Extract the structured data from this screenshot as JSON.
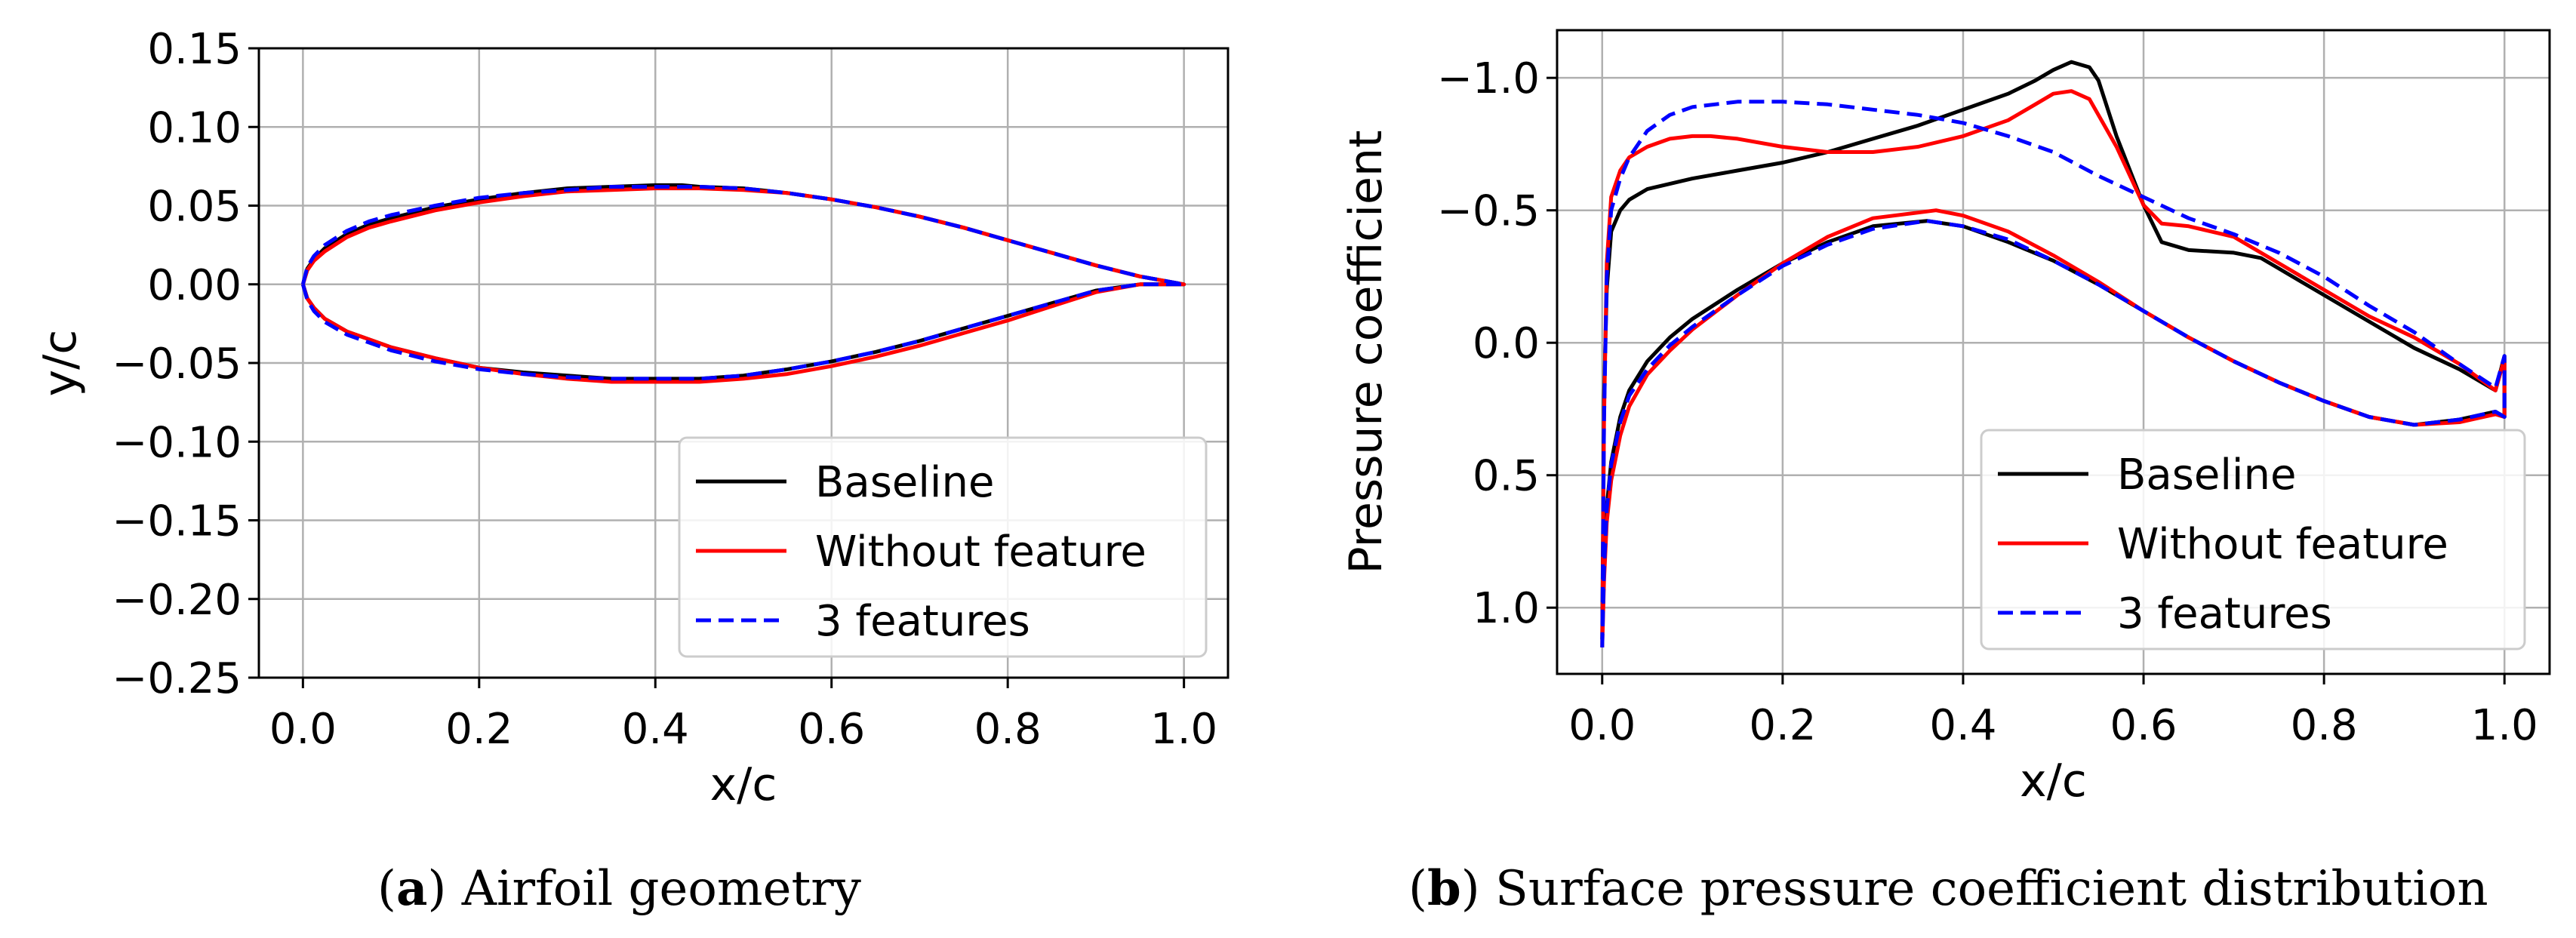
{
  "chart_data": [
    {
      "type": "line",
      "id": "a",
      "title": "",
      "caption_letter": "a",
      "caption_text": ") Airfoil geometry",
      "xlabel": "x/c",
      "ylabel": "y/c",
      "xlim": [
        -0.05,
        1.05
      ],
      "ylim": [
        -0.25,
        0.15
      ],
      "inverted_y": false,
      "grid": true,
      "xticks": [
        0.0,
        0.2,
        0.4,
        0.6,
        0.8,
        1.0
      ],
      "xtick_labels": [
        "0.0",
        "0.2",
        "0.4",
        "0.6",
        "0.8",
        "1.0"
      ],
      "yticks": [
        0.15,
        0.1,
        0.05,
        0.0,
        -0.05,
        -0.1,
        -0.15,
        -0.2,
        -0.25
      ],
      "ytick_labels": [
        "0.15",
        "0.10",
        "0.05",
        "0.00",
        "−0.05",
        "−0.10",
        "−0.15",
        "−0.20",
        "−0.25"
      ],
      "legend": {
        "placement": "lower-right",
        "entries": [
          "Baseline",
          "Without feature",
          "3 features"
        ]
      },
      "series": [
        {
          "name": "Baseline",
          "color": "#000000",
          "dash": "solid",
          "x": [
            0,
            0.005,
            0.0125,
            0.025,
            0.05,
            0.075,
            0.1,
            0.15,
            0.2,
            0.25,
            0.3,
            0.35,
            0.4,
            0.43,
            0.45,
            0.5,
            0.55,
            0.6,
            0.65,
            0.7,
            0.75,
            0.8,
            0.85,
            0.9,
            0.95,
            1.0,
            0.95,
            0.9,
            0.85,
            0.8,
            0.75,
            0.7,
            0.65,
            0.6,
            0.55,
            0.5,
            0.45,
            0.4,
            0.35,
            0.3,
            0.25,
            0.2,
            0.15,
            0.1,
            0.075,
            0.05,
            0.025,
            0.0125,
            0.005,
            0
          ],
          "y": [
            0,
            0.01,
            0.016,
            0.023,
            0.032,
            0.038,
            0.042,
            0.049,
            0.054,
            0.058,
            0.061,
            0.062,
            0.063,
            0.063,
            0.062,
            0.061,
            0.058,
            0.054,
            0.049,
            0.043,
            0.036,
            0.028,
            0.02,
            0.012,
            0.005,
            0.0,
            0.0,
            -0.004,
            -0.012,
            -0.02,
            -0.028,
            -0.036,
            -0.043,
            -0.049,
            -0.054,
            -0.058,
            -0.06,
            -0.06,
            -0.06,
            -0.058,
            -0.056,
            -0.053,
            -0.047,
            -0.04,
            -0.035,
            -0.03,
            -0.022,
            -0.015,
            -0.009,
            0
          ]
        },
        {
          "name": "Without feature",
          "color": "#ff0000",
          "dash": "solid",
          "x": [
            0,
            0.005,
            0.0125,
            0.025,
            0.05,
            0.075,
            0.1,
            0.15,
            0.2,
            0.25,
            0.3,
            0.35,
            0.4,
            0.43,
            0.45,
            0.5,
            0.55,
            0.6,
            0.65,
            0.7,
            0.75,
            0.8,
            0.85,
            0.9,
            0.95,
            1.0,
            0.95,
            0.9,
            0.85,
            0.8,
            0.75,
            0.7,
            0.65,
            0.6,
            0.55,
            0.5,
            0.45,
            0.4,
            0.35,
            0.3,
            0.25,
            0.2,
            0.15,
            0.1,
            0.075,
            0.05,
            0.025,
            0.0125,
            0.005,
            0
          ],
          "y": [
            0,
            0.009,
            0.015,
            0.021,
            0.03,
            0.036,
            0.04,
            0.047,
            0.052,
            0.056,
            0.059,
            0.06,
            0.061,
            0.061,
            0.061,
            0.06,
            0.058,
            0.054,
            0.049,
            0.043,
            0.036,
            0.028,
            0.02,
            0.012,
            0.005,
            0.0,
            0.0,
            -0.005,
            -0.014,
            -0.023,
            -0.031,
            -0.039,
            -0.046,
            -0.052,
            -0.057,
            -0.06,
            -0.062,
            -0.062,
            -0.062,
            -0.06,
            -0.057,
            -0.053,
            -0.047,
            -0.04,
            -0.035,
            -0.03,
            -0.022,
            -0.015,
            -0.009,
            0
          ]
        },
        {
          "name": "3 features",
          "color": "#0000ff",
          "dash": "dashed",
          "x": [
            0,
            0.005,
            0.0125,
            0.025,
            0.05,
            0.075,
            0.1,
            0.15,
            0.2,
            0.25,
            0.3,
            0.35,
            0.4,
            0.43,
            0.45,
            0.5,
            0.55,
            0.6,
            0.65,
            0.7,
            0.75,
            0.8,
            0.85,
            0.9,
            0.95,
            1.0,
            0.95,
            0.9,
            0.85,
            0.8,
            0.75,
            0.7,
            0.65,
            0.6,
            0.55,
            0.5,
            0.45,
            0.4,
            0.35,
            0.3,
            0.25,
            0.2,
            0.15,
            0.1,
            0.075,
            0.05,
            0.025,
            0.0125,
            0.005,
            0
          ],
          "y": [
            0,
            0.011,
            0.018,
            0.025,
            0.034,
            0.04,
            0.044,
            0.05,
            0.055,
            0.058,
            0.06,
            0.062,
            0.062,
            0.062,
            0.062,
            0.061,
            0.058,
            0.054,
            0.049,
            0.043,
            0.036,
            0.028,
            0.02,
            0.012,
            0.005,
            0.0,
            0.0,
            -0.004,
            -0.012,
            -0.02,
            -0.028,
            -0.036,
            -0.043,
            -0.049,
            -0.054,
            -0.058,
            -0.06,
            -0.06,
            -0.06,
            -0.059,
            -0.057,
            -0.054,
            -0.049,
            -0.042,
            -0.037,
            -0.032,
            -0.024,
            -0.017,
            -0.01,
            0
          ]
        }
      ]
    },
    {
      "type": "line",
      "id": "b",
      "title": "",
      "caption_letter": "b",
      "caption_text": ") Surface pressure coefficient distribution",
      "xlabel": "x/c",
      "ylabel": "Pressure coefficient",
      "xlim": [
        -0.05,
        1.05
      ],
      "ylim": [
        1.25,
        -1.18
      ],
      "inverted_y": true,
      "grid": true,
      "xticks": [
        0.0,
        0.2,
        0.4,
        0.6,
        0.8,
        1.0
      ],
      "xtick_labels": [
        "0.0",
        "0.2",
        "0.4",
        "0.6",
        "0.8",
        "1.0"
      ],
      "yticks": [
        -1.0,
        -0.5,
        0.0,
        0.5,
        1.0
      ],
      "ytick_labels": [
        "−1.0",
        "−0.5",
        "0.0",
        "0.5",
        "1.0"
      ],
      "legend": {
        "placement": "lower-right",
        "entries": [
          "Baseline",
          "Without feature",
          "3 features"
        ]
      },
      "series": [
        {
          "name": "Baseline",
          "color": "#000000",
          "dash": "solid",
          "x": [
            0,
            0.002,
            0.005,
            0.01,
            0.02,
            0.03,
            0.05,
            0.075,
            0.1,
            0.15,
            0.2,
            0.25,
            0.3,
            0.35,
            0.4,
            0.45,
            0.48,
            0.5,
            0.52,
            0.54,
            0.55,
            0.57,
            0.6,
            0.62,
            0.65,
            0.7,
            0.73,
            0.75,
            0.8,
            0.85,
            0.9,
            0.95,
            0.99,
            1.0,
            1.0,
            0.99,
            0.95,
            0.9,
            0.85,
            0.8,
            0.75,
            0.7,
            0.65,
            0.6,
            0.55,
            0.5,
            0.45,
            0.4,
            0.36,
            0.3,
            0.25,
            0.2,
            0.15,
            0.1,
            0.075,
            0.05,
            0.03,
            0.02,
            0.01,
            0.005,
            0.002,
            0
          ],
          "y": [
            1.12,
            0.2,
            -0.2,
            -0.42,
            -0.5,
            -0.54,
            -0.58,
            -0.6,
            -0.62,
            -0.65,
            -0.68,
            -0.72,
            -0.77,
            -0.82,
            -0.88,
            -0.94,
            -0.99,
            -1.03,
            -1.06,
            -1.04,
            -0.99,
            -0.78,
            -0.52,
            -0.38,
            -0.35,
            -0.34,
            -0.32,
            -0.28,
            -0.18,
            -0.08,
            0.02,
            0.1,
            0.18,
            0.05,
            0.28,
            0.26,
            0.29,
            0.31,
            0.28,
            0.22,
            0.15,
            0.07,
            -0.02,
            -0.12,
            -0.22,
            -0.31,
            -0.38,
            -0.44,
            -0.46,
            -0.44,
            -0.38,
            -0.3,
            -0.2,
            -0.09,
            -0.02,
            0.07,
            0.18,
            0.28,
            0.45,
            0.62,
            0.85,
            1.12
          ]
        },
        {
          "name": "Without feature",
          "color": "#ff0000",
          "dash": "solid",
          "x": [
            0,
            0.002,
            0.005,
            0.01,
            0.02,
            0.03,
            0.05,
            0.075,
            0.1,
            0.12,
            0.15,
            0.2,
            0.25,
            0.3,
            0.35,
            0.4,
            0.45,
            0.48,
            0.5,
            0.52,
            0.54,
            0.57,
            0.6,
            0.62,
            0.65,
            0.7,
            0.75,
            0.8,
            0.85,
            0.9,
            0.95,
            0.99,
            1.0,
            1.0,
            0.99,
            0.95,
            0.9,
            0.85,
            0.8,
            0.75,
            0.7,
            0.65,
            0.6,
            0.55,
            0.5,
            0.45,
            0.4,
            0.37,
            0.3,
            0.25,
            0.2,
            0.15,
            0.1,
            0.075,
            0.05,
            0.03,
            0.02,
            0.01,
            0.005,
            0.002,
            0
          ],
          "y": [
            1.15,
            0.3,
            -0.3,
            -0.55,
            -0.65,
            -0.7,
            -0.74,
            -0.77,
            -0.78,
            -0.78,
            -0.77,
            -0.74,
            -0.72,
            -0.72,
            -0.74,
            -0.78,
            -0.84,
            -0.9,
            -0.94,
            -0.95,
            -0.92,
            -0.74,
            -0.52,
            -0.45,
            -0.44,
            -0.4,
            -0.3,
            -0.2,
            -0.1,
            -0.02,
            0.08,
            0.18,
            0.06,
            0.28,
            0.27,
            0.3,
            0.31,
            0.28,
            0.22,
            0.15,
            0.07,
            -0.02,
            -0.12,
            -0.23,
            -0.33,
            -0.42,
            -0.48,
            -0.5,
            -0.47,
            -0.4,
            -0.3,
            -0.18,
            -0.05,
            0.03,
            0.12,
            0.24,
            0.35,
            0.52,
            0.68,
            0.9,
            1.15
          ]
        },
        {
          "name": "3 features",
          "color": "#0000ff",
          "dash": "dashed",
          "x": [
            0,
            0.002,
            0.005,
            0.01,
            0.02,
            0.03,
            0.05,
            0.075,
            0.1,
            0.15,
            0.2,
            0.25,
            0.3,
            0.35,
            0.4,
            0.45,
            0.5,
            0.55,
            0.6,
            0.65,
            0.7,
            0.75,
            0.8,
            0.85,
            0.9,
            0.95,
            0.99,
            1.0,
            1.0,
            0.99,
            0.95,
            0.9,
            0.85,
            0.8,
            0.75,
            0.7,
            0.65,
            0.6,
            0.55,
            0.5,
            0.45,
            0.4,
            0.36,
            0.3,
            0.25,
            0.2,
            0.15,
            0.1,
            0.075,
            0.05,
            0.03,
            0.02,
            0.01,
            0.005,
            0.002,
            0
          ],
          "y": [
            1.15,
            0.3,
            -0.25,
            -0.5,
            -0.62,
            -0.7,
            -0.8,
            -0.86,
            -0.89,
            -0.91,
            -0.91,
            -0.9,
            -0.88,
            -0.86,
            -0.83,
            -0.78,
            -0.72,
            -0.63,
            -0.55,
            -0.47,
            -0.41,
            -0.34,
            -0.25,
            -0.14,
            -0.04,
            0.08,
            0.17,
            0.05,
            0.28,
            0.26,
            0.29,
            0.31,
            0.28,
            0.22,
            0.15,
            0.07,
            -0.02,
            -0.12,
            -0.22,
            -0.31,
            -0.39,
            -0.44,
            -0.46,
            -0.43,
            -0.37,
            -0.29,
            -0.18,
            -0.06,
            0.01,
            0.1,
            0.2,
            0.3,
            0.46,
            0.63,
            0.86,
            1.15
          ]
        }
      ]
    }
  ]
}
